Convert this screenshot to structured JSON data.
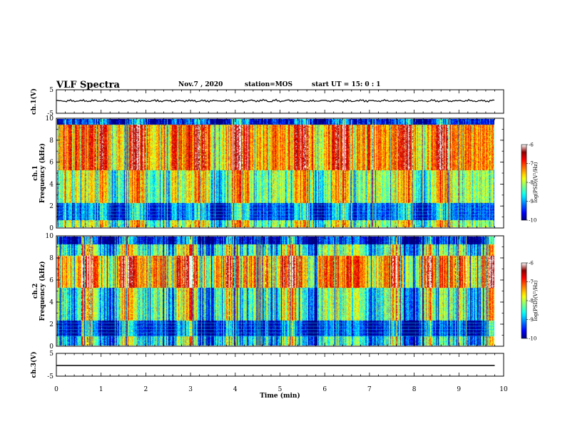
{
  "header": {
    "title": "VLF Spectra",
    "date": "Nov.7 , 2020",
    "station": "station=MOS",
    "start": "start UT = 15: 0 : 1"
  },
  "chart_data": [
    {
      "type": "line",
      "panel": "ch1-waveform",
      "ylabel": "ch.1(V)",
      "ylim": [
        -5,
        5
      ],
      "yticks": [
        "5",
        "-5"
      ],
      "xlim": [
        0,
        10
      ],
      "series": [
        {
          "values_level": 0
        }
      ]
    },
    {
      "type": "heatmap",
      "panel": "ch1-spectrogram",
      "ylabel": "ch.1\nFrequency (kHz)",
      "ylim": [
        0,
        10
      ],
      "yticks": [
        "0",
        "2",
        "4",
        "6",
        "8",
        "10"
      ],
      "xlim": [
        0,
        9.8
      ],
      "colorbar": {
        "label": "log(PSD)(V²/Hz)",
        "range": [
          -10,
          -6
        ],
        "ticks": [
          "-6",
          "-7",
          "-8",
          "-9",
          "-10"
        ]
      }
    },
    {
      "type": "heatmap",
      "panel": "ch2-spectrogram",
      "ylabel": "ch.2\nFrequency (kHz)",
      "ylim": [
        0,
        10
      ],
      "yticks": [
        "0",
        "2",
        "4",
        "6",
        "8",
        "10"
      ],
      "xlim": [
        0,
        9.8
      ],
      "colorbar": {
        "label": "log(PSD)(V²/Hz)",
        "range": [
          -10,
          -6
        ],
        "ticks": [
          "-6",
          "-7",
          "-8",
          "-9",
          "-10"
        ]
      }
    },
    {
      "type": "line",
      "panel": "ch3-waveform",
      "ylabel": "ch.3(V)",
      "ylim": [
        -5,
        5
      ],
      "yticks": [
        "5",
        "-5"
      ],
      "xlim": [
        0,
        10
      ],
      "series": [
        {
          "values_level": 0
        }
      ]
    }
  ],
  "xaxis": {
    "label": "Time (min)",
    "ticks": [
      "0",
      "1",
      "2",
      "3",
      "4",
      "5",
      "6",
      "7",
      "8",
      "9",
      "10"
    ],
    "range": [
      0,
      10
    ]
  }
}
